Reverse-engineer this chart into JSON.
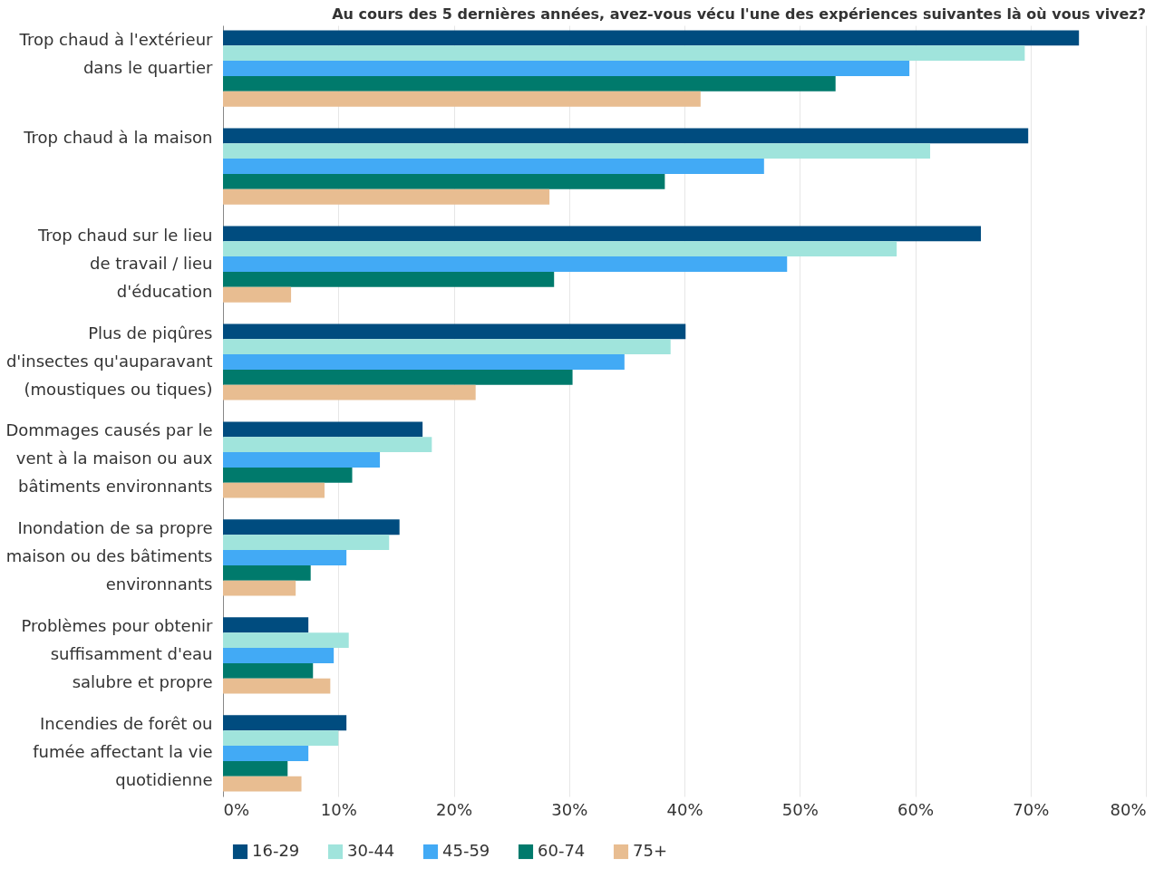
{
  "chart_data": {
    "type": "bar",
    "orientation": "horizontal",
    "title": "Au cours des 5 dernières années, avez-vous vécu l'une des expériences suivantes là où vous vivez?",
    "categories": [
      "Trop chaud à l'extérieur dans le quartier",
      "Trop chaud à la maison",
      "Trop chaud sur le lieu de travail / lieu d'éducation",
      "Plus de piqûres d'insectes qu'auparavant (moustiques ou tiques)",
      "Dommages causés par le vent à la maison ou aux bâtiments environnants",
      "Inondation de sa propre maison ou des bâtiments environnants",
      "Problèmes pour obtenir suffisamment d'eau salubre et propre",
      "Incendies de forêt ou fumée affectant la vie quotidienne"
    ],
    "series": [
      {
        "name": "16-29",
        "color": "#004c7f",
        "values": [
          74.2,
          69.8,
          65.7,
          40.1,
          17.3,
          15.3,
          7.4,
          10.7
        ]
      },
      {
        "name": "30-44",
        "color": "#a0e4dc",
        "values": [
          69.5,
          61.3,
          58.4,
          38.8,
          18.1,
          14.4,
          10.9,
          10.0
        ]
      },
      {
        "name": "45-59",
        "color": "#42aaf5",
        "values": [
          59.5,
          46.9,
          48.9,
          34.8,
          13.6,
          10.7,
          9.6,
          7.4
        ]
      },
      {
        "name": "60-74",
        "color": "#007a6c",
        "values": [
          53.1,
          38.3,
          28.7,
          30.3,
          11.2,
          7.6,
          7.8,
          5.6
        ]
      },
      {
        "name": "75+",
        "color": "#e8bd91",
        "values": [
          41.4,
          28.3,
          5.9,
          21.9,
          8.8,
          6.3,
          9.3,
          6.8
        ]
      }
    ],
    "xlim": [
      0,
      80
    ],
    "xticks": [
      {
        "value": 0,
        "label": "0%"
      },
      {
        "value": 10,
        "label": "10%"
      },
      {
        "value": 20,
        "label": "20%"
      },
      {
        "value": 30,
        "label": "30%"
      },
      {
        "value": 40,
        "label": "40%"
      },
      {
        "value": 50,
        "label": "50%"
      },
      {
        "value": 60,
        "label": "60%"
      },
      {
        "value": 70,
        "label": "70%"
      },
      {
        "value": 80,
        "label": "80%"
      }
    ],
    "grid": "x",
    "legend": "bottom"
  }
}
